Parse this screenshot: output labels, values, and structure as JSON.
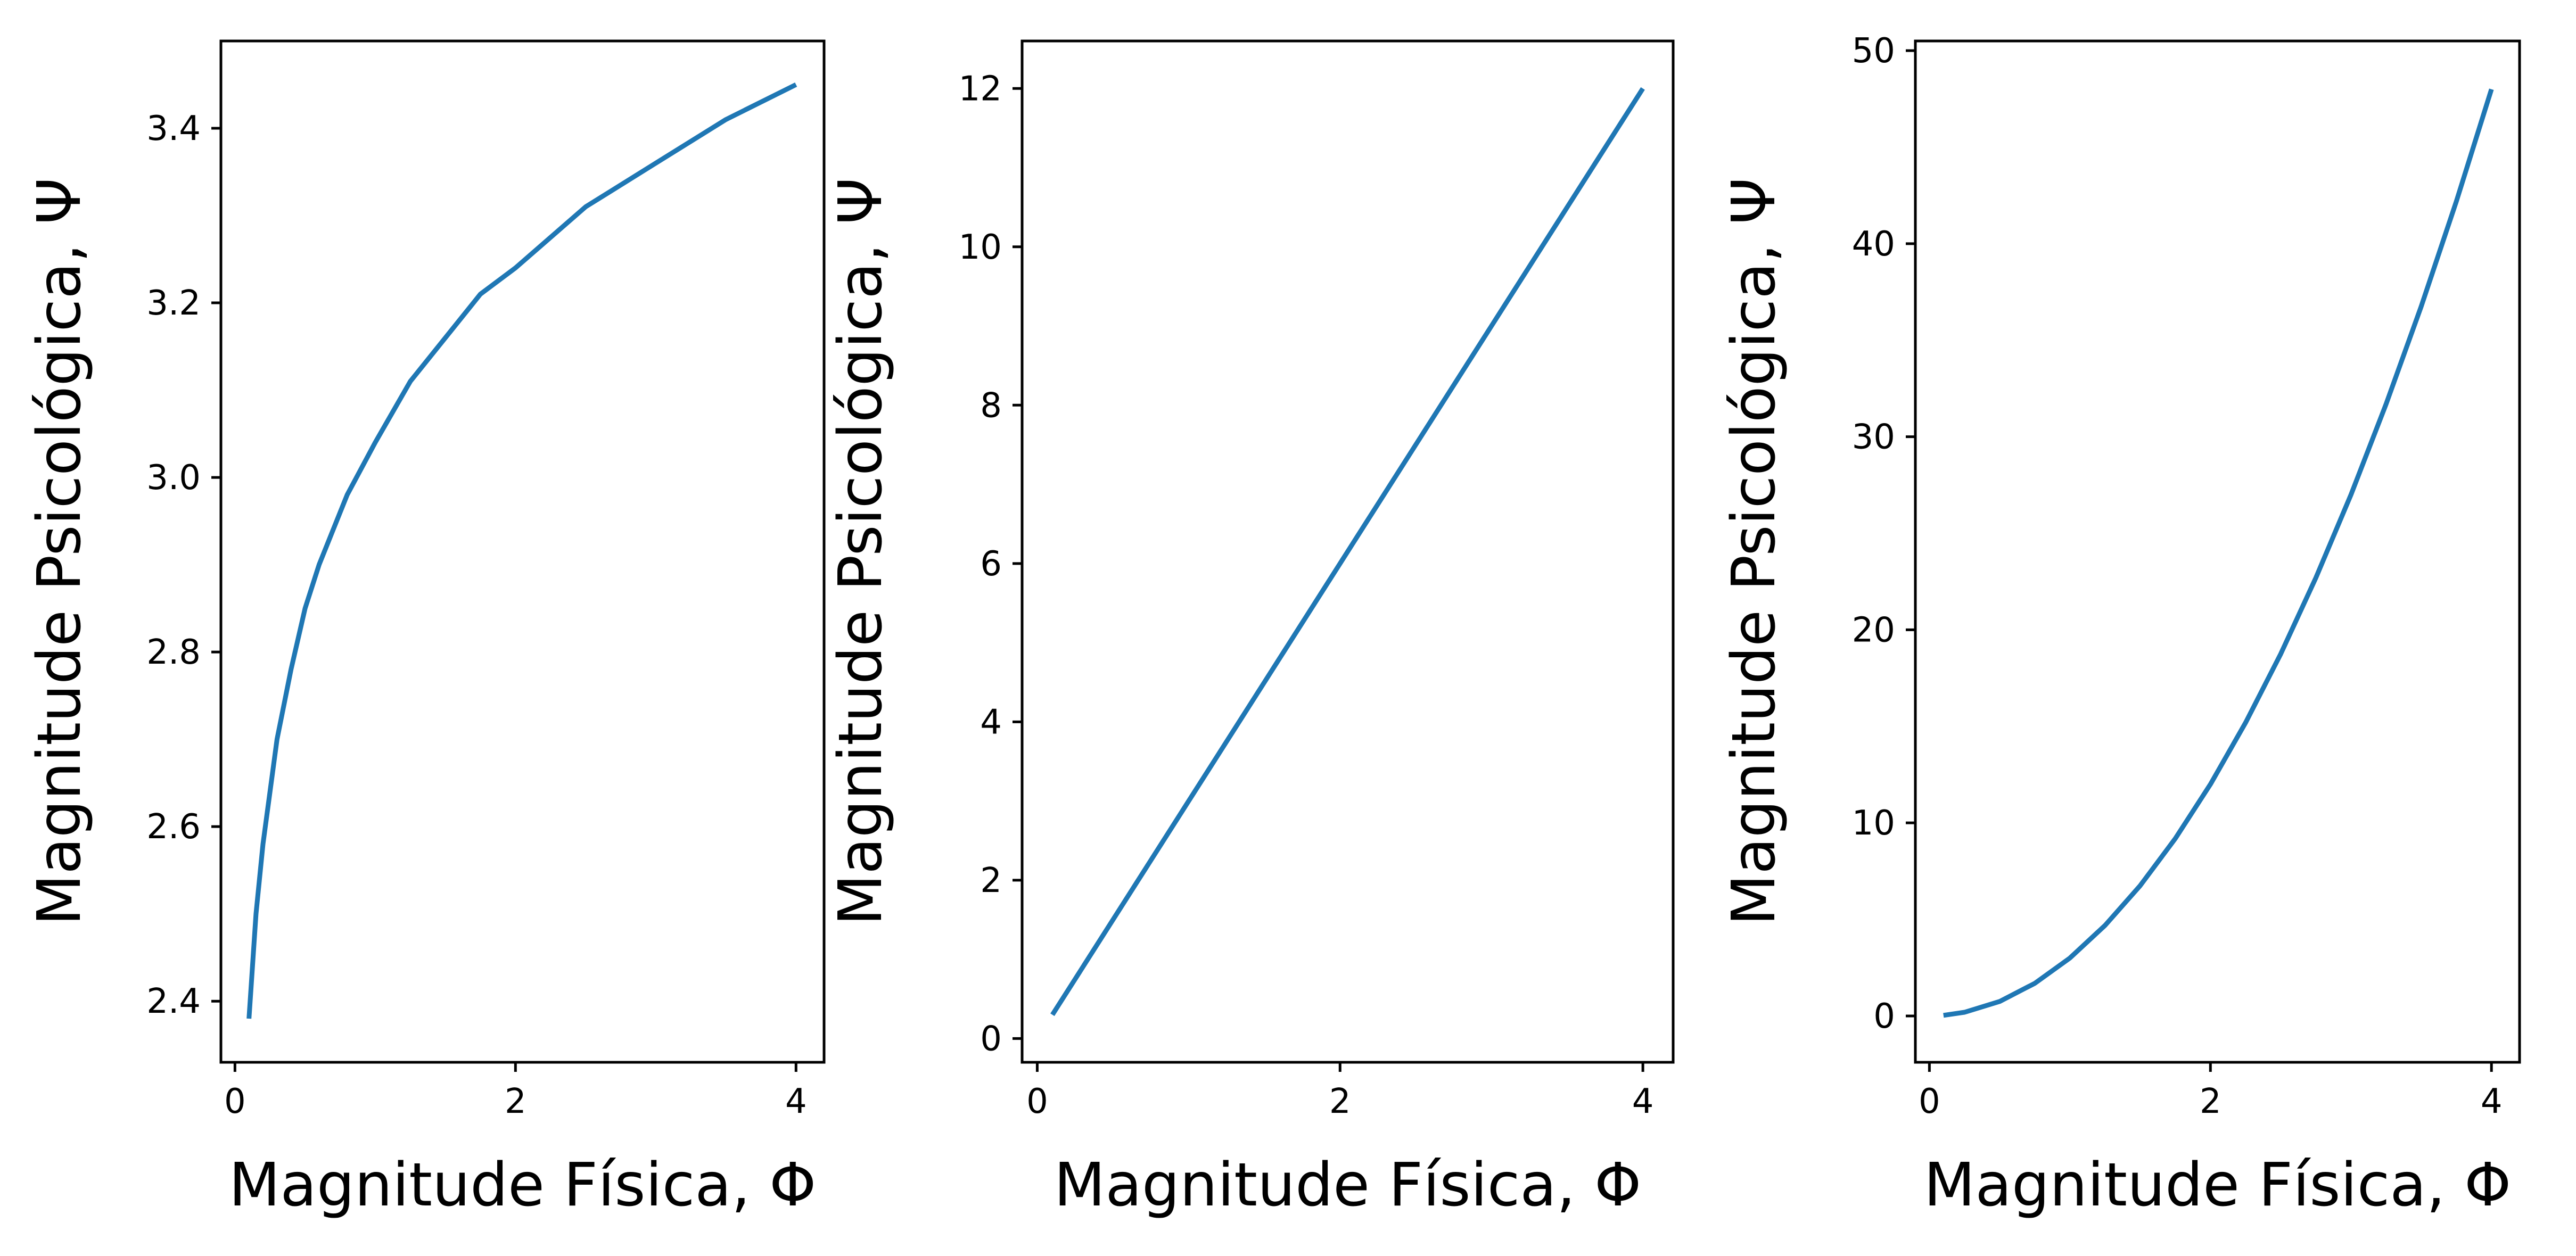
{
  "chart_data": [
    {
      "type": "line",
      "xlabel": "Magnitude Física, Φ",
      "ylabel": "Magnitude Psicológica, Ψ",
      "xlim": [
        -0.1,
        4.2
      ],
      "ylim": [
        2.33,
        3.5
      ],
      "xticks": [
        {
          "value": 0,
          "label": "0"
        },
        {
          "value": 2,
          "label": "2"
        },
        {
          "value": 4,
          "label": "4"
        }
      ],
      "yticks": [
        {
          "value": 2.4,
          "label": "2.4"
        },
        {
          "value": 2.6,
          "label": "2.6"
        },
        {
          "value": 2.8,
          "label": "2.8"
        },
        {
          "value": 3.0,
          "label": "3.0"
        },
        {
          "value": 3.2,
          "label": "3.2"
        },
        {
          "value": 3.4,
          "label": "3.4"
        }
      ],
      "color": "#1f77b4",
      "series": [
        {
          "x": [
            0.1,
            0.15,
            0.2,
            0.3,
            0.4,
            0.5,
            0.6,
            0.8,
            1.0,
            1.25,
            1.5,
            1.75,
            2.0,
            2.5,
            3.0,
            3.5,
            4.0
          ],
          "y": [
            2.38,
            2.5,
            2.58,
            2.7,
            2.78,
            2.85,
            2.9,
            2.98,
            3.04,
            3.11,
            3.16,
            3.21,
            3.24,
            3.31,
            3.36,
            3.41,
            3.45
          ]
        }
      ]
    },
    {
      "type": "line",
      "xlabel": "Magnitude Física, Φ",
      "ylabel": "Magnitude Psicológica, Ψ",
      "xlim": [
        -0.1,
        4.2
      ],
      "ylim": [
        -0.3,
        12.6
      ],
      "xticks": [
        {
          "value": 0,
          "label": "0"
        },
        {
          "value": 2,
          "label": "2"
        },
        {
          "value": 4,
          "label": "4"
        }
      ],
      "yticks": [
        {
          "value": 0,
          "label": "0"
        },
        {
          "value": 2,
          "label": "2"
        },
        {
          "value": 4,
          "label": "4"
        },
        {
          "value": 6,
          "label": "6"
        },
        {
          "value": 8,
          "label": "8"
        },
        {
          "value": 10,
          "label": "10"
        },
        {
          "value": 12,
          "label": "12"
        }
      ],
      "color": "#1f77b4",
      "series": [
        {
          "x": [
            0.1,
            1.0,
            2.0,
            3.0,
            4.0
          ],
          "y": [
            0.3,
            3.0,
            6.0,
            9.0,
            12.0
          ]
        }
      ]
    },
    {
      "type": "line",
      "xlabel": "Magnitude Física, Φ",
      "ylabel": "Magnitude Psicológica, Ψ",
      "xlim": [
        -0.1,
        4.2
      ],
      "ylim": [
        -2.4,
        50.5
      ],
      "xticks": [
        {
          "value": 0,
          "label": "0"
        },
        {
          "value": 2,
          "label": "2"
        },
        {
          "value": 4,
          "label": "4"
        }
      ],
      "yticks": [
        {
          "value": 0,
          "label": "0"
        },
        {
          "value": 10,
          "label": "10"
        },
        {
          "value": 20,
          "label": "20"
        },
        {
          "value": 30,
          "label": "30"
        },
        {
          "value": 40,
          "label": "40"
        },
        {
          "value": 50,
          "label": "50"
        }
      ],
      "color": "#1f77b4",
      "series": [
        {
          "x": [
            0.1,
            0.25,
            0.5,
            0.75,
            1.0,
            1.25,
            1.5,
            1.75,
            2.0,
            2.25,
            2.5,
            2.75,
            3.0,
            3.25,
            3.5,
            3.75,
            4.0
          ],
          "y": [
            0.03,
            0.19,
            0.75,
            1.69,
            3.0,
            4.69,
            6.75,
            9.19,
            12.0,
            15.19,
            18.75,
            22.69,
            27.0,
            31.69,
            36.75,
            42.19,
            48.0
          ]
        }
      ]
    }
  ]
}
